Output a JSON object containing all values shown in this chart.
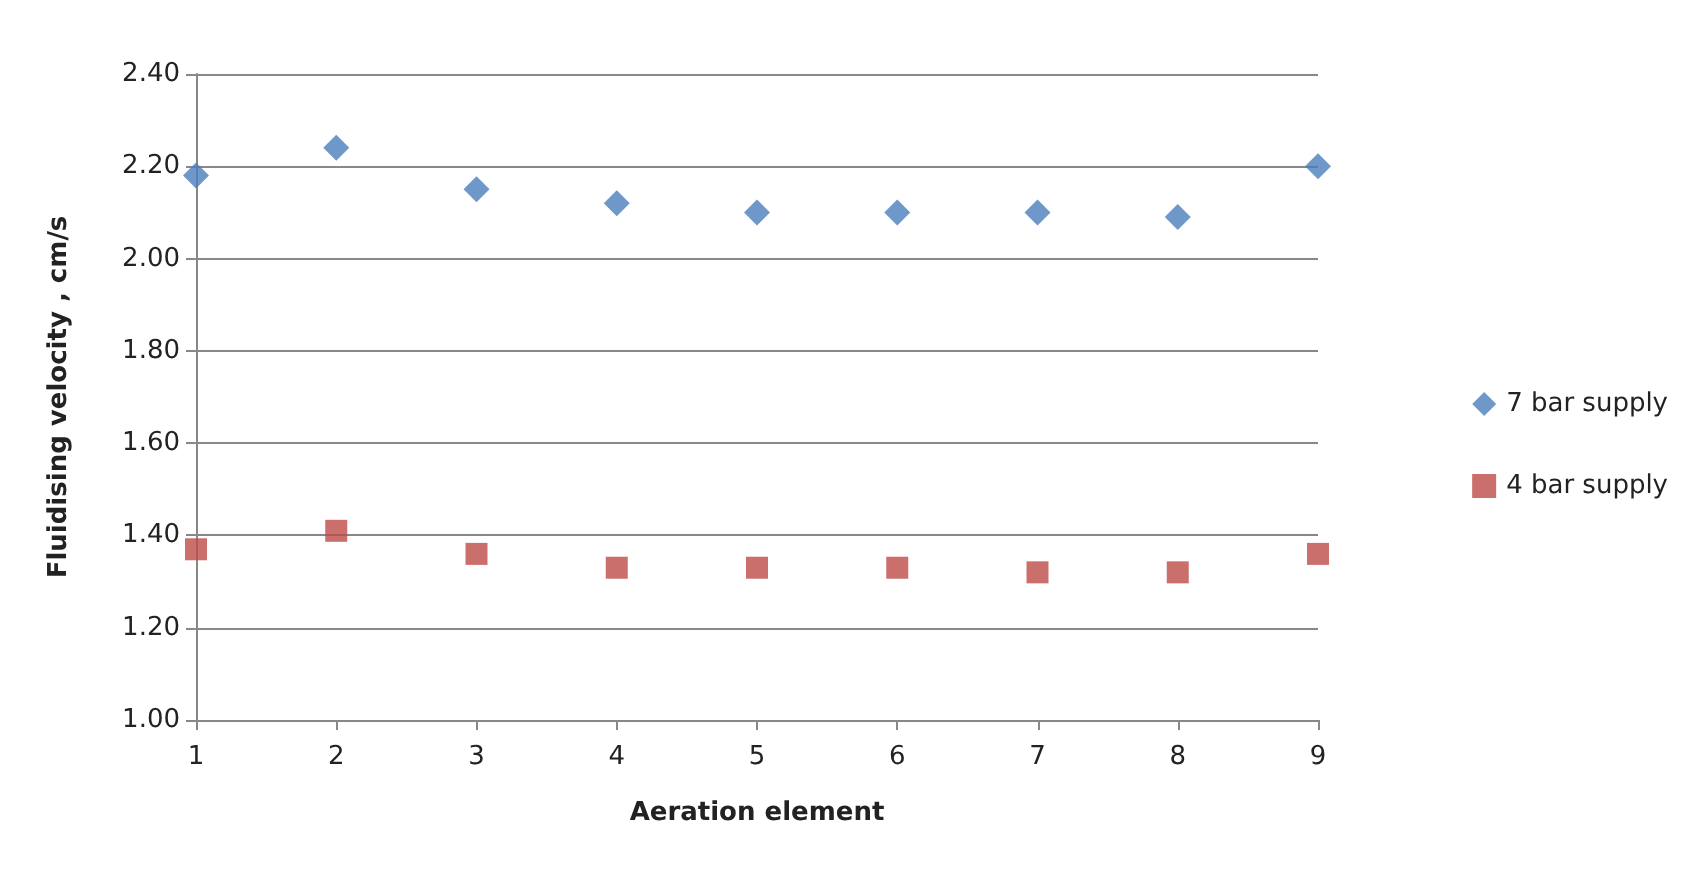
{
  "chart_data": {
    "type": "scatter",
    "xlabel": "Aeration element",
    "ylabel": "Fluidising velocity , cm/s",
    "categories": [
      "1",
      "2",
      "3",
      "4",
      "5",
      "6",
      "7",
      "8",
      "9"
    ],
    "series": [
      {
        "name": "7 bar supply",
        "color": "#4a7ebb",
        "marker": "diamond",
        "values": [
          2.18,
          2.24,
          2.15,
          2.12,
          2.1,
          2.1,
          2.1,
          2.09,
          2.2
        ]
      },
      {
        "name": "4 bar supply",
        "color": "#be4b48",
        "marker": "square",
        "values": [
          1.37,
          1.41,
          1.36,
          1.33,
          1.33,
          1.33,
          1.32,
          1.32,
          1.36
        ]
      }
    ],
    "ylim": [
      1.0,
      2.4
    ],
    "yticks": [
      {
        "value": 1.0,
        "label": "1.00"
      },
      {
        "value": 1.2,
        "label": "1.20"
      },
      {
        "value": 1.4,
        "label": "1.40"
      },
      {
        "value": 1.6,
        "label": "1.60"
      },
      {
        "value": 1.8,
        "label": "1.80"
      },
      {
        "value": 2.0,
        "label": "2.00"
      },
      {
        "value": 2.2,
        "label": "2.20"
      },
      {
        "value": 2.4,
        "label": "2.40"
      }
    ],
    "grid": "y",
    "legend": "right"
  }
}
